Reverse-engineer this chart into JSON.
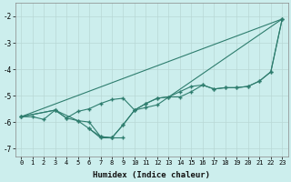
{
  "xlabel": "Humidex (Indice chaleur)",
  "bg_color": "#cceeed",
  "grid_color": "#b8d8d5",
  "line_color": "#2e7d6e",
  "xlim": [
    -0.5,
    23.5
  ],
  "ylim": [
    -7.3,
    -1.5
  ],
  "yticks": [
    -7,
    -6,
    -5,
    -4,
    -3,
    -2
  ],
  "xticks": [
    0,
    1,
    2,
    3,
    4,
    5,
    6,
    7,
    8,
    9,
    10,
    11,
    12,
    13,
    14,
    15,
    16,
    17,
    18,
    19,
    20,
    21,
    22,
    23
  ],
  "series1": [
    [
      0,
      -5.8
    ],
    [
      1,
      -5.8
    ],
    [
      2,
      -5.9
    ],
    [
      3,
      -5.55
    ],
    [
      4,
      -5.85
    ],
    [
      5,
      -5.6
    ],
    [
      6,
      -5.5
    ],
    [
      7,
      -5.3
    ],
    [
      8,
      -5.15
    ],
    [
      9,
      -5.1
    ],
    [
      10,
      -5.55
    ],
    [
      11,
      -5.3
    ],
    [
      12,
      -5.1
    ],
    [
      13,
      -5.05
    ],
    [
      14,
      -5.05
    ],
    [
      15,
      -4.85
    ],
    [
      16,
      -4.6
    ],
    [
      17,
      -4.75
    ],
    [
      18,
      -4.7
    ],
    [
      19,
      -4.7
    ],
    [
      20,
      -4.65
    ],
    [
      21,
      -4.45
    ],
    [
      22,
      -4.1
    ],
    [
      23,
      -2.1
    ]
  ],
  "series2": [
    [
      0,
      -5.8
    ],
    [
      3,
      -5.55
    ],
    [
      4,
      -5.85
    ],
    [
      5,
      -5.95
    ],
    [
      6,
      -6.0
    ],
    [
      7,
      -6.55
    ],
    [
      8,
      -6.6
    ],
    [
      9,
      -6.1
    ],
    [
      10,
      -5.55
    ],
    [
      11,
      -5.3
    ],
    [
      12,
      -5.1
    ],
    [
      13,
      -5.05
    ],
    [
      14,
      -4.85
    ],
    [
      15,
      -4.65
    ],
    [
      16,
      -4.6
    ],
    [
      17,
      -4.75
    ],
    [
      18,
      -4.7
    ],
    [
      19,
      -4.7
    ],
    [
      20,
      -4.65
    ],
    [
      21,
      -4.45
    ],
    [
      22,
      -4.1
    ],
    [
      23,
      -2.1
    ]
  ],
  "series3": [
    [
      0,
      -5.8
    ],
    [
      3,
      -5.55
    ],
    [
      5,
      -5.95
    ],
    [
      6,
      -6.25
    ],
    [
      7,
      -6.55
    ],
    [
      8,
      -6.6
    ],
    [
      9,
      -6.1
    ],
    [
      10,
      -5.55
    ],
    [
      11,
      -5.45
    ],
    [
      12,
      -5.35
    ],
    [
      23,
      -2.1
    ]
  ],
  "series4": [
    [
      0,
      -5.8
    ],
    [
      23,
      -2.1
    ]
  ],
  "series5": [
    [
      6,
      -6.25
    ],
    [
      7,
      -6.6
    ],
    [
      8,
      -6.6
    ],
    [
      9,
      -6.6
    ]
  ]
}
